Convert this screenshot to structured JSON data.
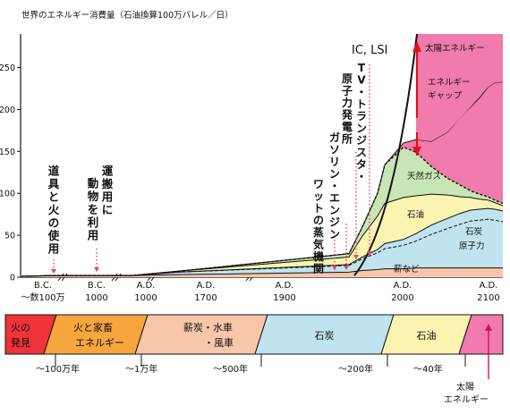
{
  "chart_data": {
    "type": "area",
    "title": "世界のエネルギー消費量（石油換算100万バレル／日）",
    "ylim": [
      0,
      290
    ],
    "yticks": [
      0,
      50,
      100,
      150,
      200,
      250
    ],
    "xtick_labels": [
      {
        "top": "B.C.",
        "bottom": "〜数100万"
      },
      {
        "top": "B.C.",
        "bottom": "1000"
      },
      {
        "top": "A.D.",
        "bottom": "1000"
      },
      {
        "top": "A.D.",
        "bottom": "1700"
      },
      {
        "top": "A.D.",
        "bottom": "1900"
      },
      {
        "top": "A.D.",
        "bottom": "2000"
      },
      {
        "top": "A.D.",
        "bottom": "2100"
      }
    ],
    "x": [
      "〜数100万",
      "1000",
      "1000",
      "1700",
      "1900",
      "1950",
      "1970",
      "1990",
      "2000",
      "2010",
      "2020",
      "2030",
      "2040",
      "2050",
      "2060",
      "2070",
      "2080",
      "2090",
      "2100"
    ],
    "series": [
      {
        "name": "薪など",
        "color": "#f8c6a8",
        "values": [
          1,
          2,
          2,
          2,
          3,
          6,
          8,
          9,
          10,
          10,
          11,
          11,
          11,
          11,
          11,
          11,
          11,
          11,
          11
        ]
      },
      {
        "name": "石炭",
        "color": "#bfe4ef",
        "values": [
          0,
          0,
          0,
          0,
          3,
          8,
          14,
          20,
          24,
          28,
          32,
          40,
          47,
          52,
          56,
          57,
          58,
          57,
          55
        ]
      },
      {
        "name": "原子力",
        "color": "#bfe4ef",
        "values": [
          0,
          0,
          0,
          0,
          0,
          1,
          2,
          4,
          6,
          7,
          9,
          11,
          12,
          13,
          13,
          13,
          13,
          13,
          13
        ]
      },
      {
        "name": "石油",
        "color": "#fbf3b0",
        "values": [
          0,
          0,
          0,
          0,
          1,
          9,
          25,
          40,
          48,
          50,
          45,
          37,
          28,
          20,
          15,
          12,
          10,
          8,
          6
        ]
      },
      {
        "name": "天然ガス",
        "color": "#c8e6b5",
        "values": [
          0,
          0,
          0,
          0,
          0,
          4,
          11,
          27,
          46,
          60,
          52,
          33,
          20,
          14,
          8,
          6,
          4,
          3,
          3
        ]
      },
      {
        "name": "エネルギーギャップ",
        "color": "#f07bac",
        "values": [
          0,
          0,
          0,
          0,
          0,
          0,
          0,
          0,
          0,
          5,
          15,
          30,
          55,
          80,
          100,
          115,
          130,
          140,
          145
        ]
      }
    ],
    "annotations": [
      {
        "text": "道具と火の使用"
      },
      {
        "text": "運搬用に動物を利用"
      },
      {
        "text": "ワットの蒸気機関"
      },
      {
        "text": "ガソリン・エンジン"
      },
      {
        "text": "TV・トランジスタ・原子力発電所"
      },
      {
        "text": "IC, LSI"
      },
      {
        "text": "太陽エネルギー"
      },
      {
        "text": "エネルギーギャップ"
      },
      {
        "text": "天然ガス"
      },
      {
        "text": "石油"
      },
      {
        "text": "石炭"
      },
      {
        "text": "原子力"
      },
      {
        "text": "薪など"
      }
    ],
    "legend": "none",
    "grid": false
  },
  "timeline": {
    "segments": [
      {
        "label_lines": [
          "火の",
          "発見"
        ],
        "color": "#ee3339"
      },
      {
        "label_lines": [
          "火と家畜",
          "エネルギー"
        ],
        "color": "#f7a63d"
      },
      {
        "label_lines": [
          "薪炭・水車",
          "・風車"
        ],
        "color": "#f8c6a8"
      },
      {
        "label_lines": [
          "石炭"
        ],
        "color": "#bfe4ef"
      },
      {
        "label_lines": [
          "石油"
        ],
        "color": "#fbf3b0"
      },
      {
        "label_lines": [],
        "color": "#f07bac"
      }
    ],
    "durations": [
      "〜100万年",
      "〜1万年",
      "〜500年",
      "〜200年",
      "〜40年"
    ],
    "end_label_lines": [
      "太陽",
      "エネルギー"
    ]
  }
}
